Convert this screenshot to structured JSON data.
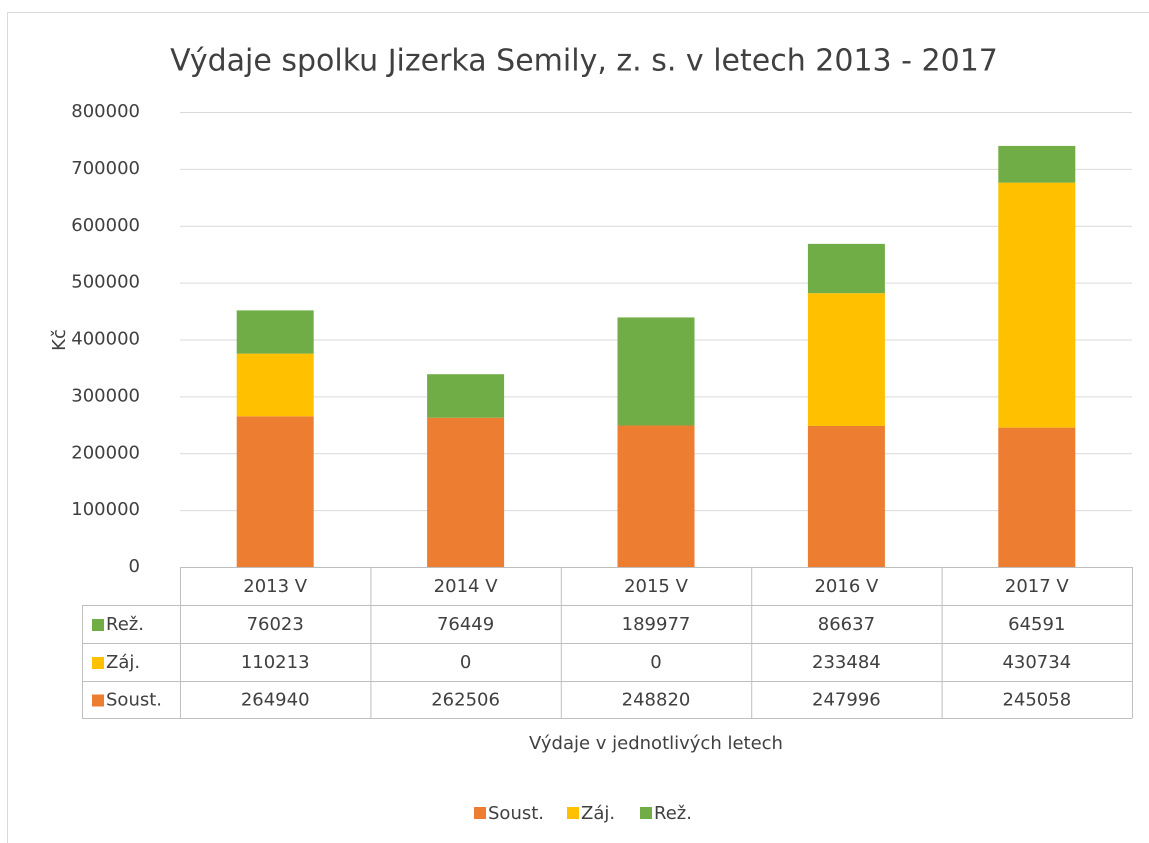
{
  "chart_data": {
    "type": "bar",
    "stacked": true,
    "title": "Výdaje spolku Jizerka Semily, z. s. v letech 2013 - 2017",
    "y_label": "Kč",
    "x_label": "Výdaje v jednotlivých letech",
    "categories": [
      "2013 V",
      "2014 V",
      "2015 V",
      "2016 V",
      "2017 V"
    ],
    "series": [
      {
        "name": "Soust.",
        "color": "#ed7d31",
        "values": [
          264940,
          262506,
          248820,
          247996,
          245058
        ]
      },
      {
        "name": "Záj.",
        "color": "#ffc000",
        "values": [
          110213,
          0,
          0,
          233484,
          430734
        ]
      },
      {
        "name": "Rež.",
        "color": "#70ad47",
        "values": [
          76023,
          76449,
          189977,
          86637,
          64591
        ]
      }
    ],
    "ylim": [
      0,
      800000
    ],
    "yticks": [
      0,
      100000,
      200000,
      300000,
      400000,
      500000,
      600000,
      700000,
      800000
    ],
    "grid": true,
    "legend": "bottom",
    "data_table": true
  }
}
